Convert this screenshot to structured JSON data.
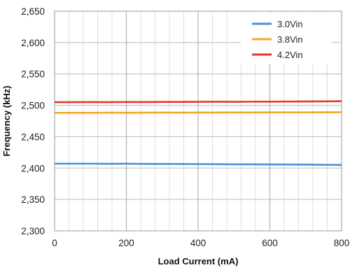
{
  "chart_data": {
    "type": "line",
    "title": "",
    "xlabel": "Load Current (mA)",
    "ylabel": "Frequency (kHz)",
    "xlim": [
      0,
      800
    ],
    "ylim": [
      2300,
      2650
    ],
    "x_ticks": [
      0,
      200,
      400,
      600,
      800
    ],
    "x_tick_labels": [
      "0",
      "200",
      "400",
      "600",
      "800"
    ],
    "y_ticks": [
      2300,
      2350,
      2400,
      2450,
      2500,
      2550,
      2600,
      2650
    ],
    "y_tick_labels": [
      "2,300",
      "2,350",
      "2,400",
      "2,450",
      "2,500",
      "2,550",
      "2,600",
      "2,650"
    ],
    "grid": true,
    "legend_position": "top-right",
    "x": [
      0,
      50,
      100,
      150,
      200,
      250,
      300,
      350,
      400,
      450,
      500,
      550,
      600,
      650,
      700,
      750,
      800
    ],
    "series": [
      {
        "name": "3.0Vin",
        "color": "#4a90d9",
        "values": [
          2407,
          2407,
          2407,
          2406.8,
          2407,
          2406.6,
          2406.5,
          2406.5,
          2406.3,
          2406.2,
          2406,
          2406,
          2405.8,
          2405.7,
          2405.5,
          2405.3,
          2405
        ]
      },
      {
        "name": "3.8Vin",
        "color": "#f5a623",
        "values": [
          2488,
          2488.2,
          2488,
          2488.3,
          2488.2,
          2488.3,
          2488.4,
          2488.3,
          2488.5,
          2488.4,
          2488.6,
          2488.6,
          2488.7,
          2488.7,
          2488.8,
          2488.9,
          2489
        ]
      },
      {
        "name": "4.2Vin",
        "color": "#e8352c",
        "values": [
          2505,
          2505,
          2505.2,
          2505,
          2505.3,
          2505.2,
          2505.4,
          2505.4,
          2505.6,
          2505.7,
          2505.6,
          2505.8,
          2505.9,
          2506,
          2506.1,
          2506.3,
          2506.6
        ]
      }
    ]
  }
}
